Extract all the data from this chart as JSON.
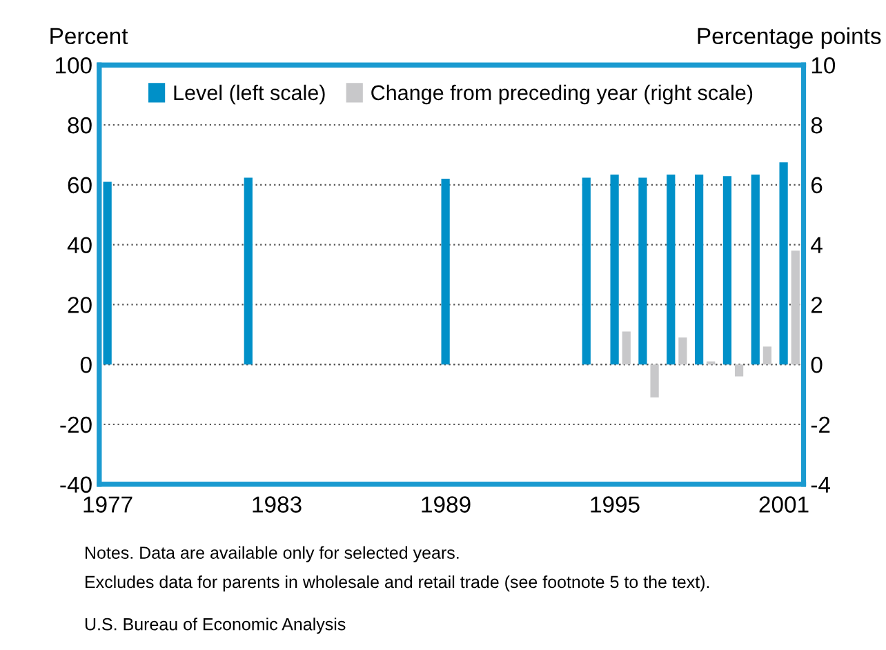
{
  "chart_data": {
    "type": "bar",
    "ylabel": "Percent",
    "y2label": "Percentage points",
    "categories": [
      "1977",
      null,
      null,
      null,
      null,
      null,
      "1983",
      null,
      null,
      null,
      null,
      null,
      "1989",
      null,
      null,
      null,
      null,
      null,
      "1995",
      null,
      null,
      null,
      null,
      null,
      "2001"
    ],
    "series": [
      {
        "name": "Level (left scale)",
        "color": "#0090c8",
        "values": [
          61,
          null,
          null,
          null,
          null,
          62.4,
          null,
          null,
          null,
          null,
          null,
          null,
          62,
          null,
          null,
          null,
          null,
          62.4,
          63.4,
          62.4,
          63.4,
          63.4,
          62.9,
          63.4,
          67.5
        ]
      },
      {
        "name": "Change from preceding year (right scale)",
        "color": "#c8c8ca",
        "axis": "y2",
        "values": [
          null,
          null,
          null,
          null,
          null,
          null,
          null,
          null,
          null,
          null,
          null,
          null,
          null,
          null,
          null,
          null,
          null,
          null,
          1.1,
          -1.1,
          0.9,
          0.1,
          -0.4,
          0.6,
          3.8
        ]
      }
    ],
    "ylim": [
      -40,
      100
    ],
    "yticks": [
      -40,
      -20,
      0,
      20,
      40,
      60,
      80,
      100
    ],
    "y2lim": [
      -4,
      10
    ],
    "y2ticks": [
      -4,
      -2,
      0,
      2,
      4,
      6,
      8,
      10
    ],
    "grid": "y",
    "legend": "top",
    "annotations": [
      "Notes. Data are available only for selected years.",
      "Excludes data for parents in wholesale and retail trade (see footnote 5 to the text).",
      "U.S. Bureau of Economic Analysis"
    ]
  }
}
